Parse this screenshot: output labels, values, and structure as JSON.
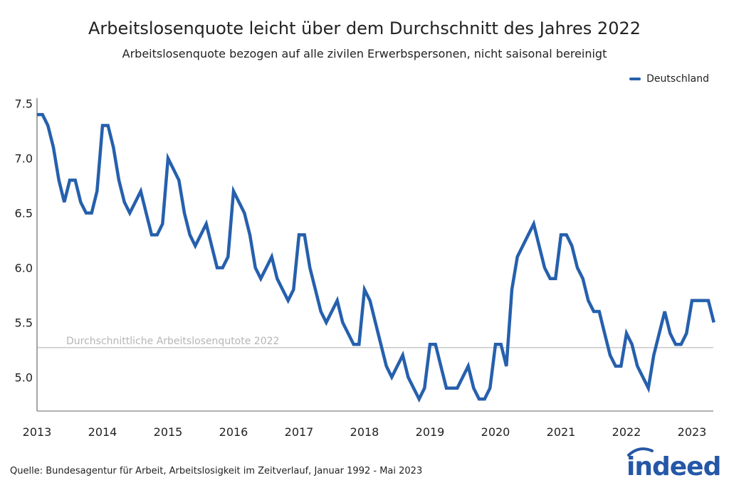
{
  "chart_data": {
    "type": "line",
    "title": "Arbeitslosenquote leicht über dem Durchschnitt des Jahres 2022",
    "subtitle": "Arbeitslosenquote bezogen auf alle zivilen Erwerbspersonen, nicht saisonal bereinigt",
    "xlabel": "",
    "ylabel": "",
    "x_start": "2013-01",
    "x_frequency": "monthly",
    "x_ticks": [
      "2013",
      "2014",
      "2015",
      "2016",
      "2017",
      "2018",
      "2019",
      "2020",
      "2021",
      "2022",
      "2023"
    ],
    "y_ticks": [
      "5.0",
      "5.5",
      "6.0",
      "6.5",
      "7.0",
      "7.5"
    ],
    "ylim": [
      4.69,
      7.55
    ],
    "xlim": [
      "2013-01",
      "2023-05"
    ],
    "grid": false,
    "legend_position": "top-right",
    "series": [
      {
        "name": "Deutschland",
        "color": "#2660ad",
        "values": [
          7.4,
          7.4,
          7.3,
          7.1,
          6.8,
          6.6,
          6.8,
          6.8,
          6.6,
          6.5,
          6.5,
          6.7,
          7.3,
          7.3,
          7.1,
          6.8,
          6.6,
          6.5,
          6.6,
          6.7,
          6.5,
          6.3,
          6.3,
          6.4,
          7.0,
          6.9,
          6.8,
          6.5,
          6.3,
          6.2,
          6.3,
          6.4,
          6.2,
          6.0,
          6.0,
          6.1,
          6.7,
          6.6,
          6.5,
          6.3,
          6.0,
          5.9,
          6.0,
          6.1,
          5.9,
          5.8,
          5.7,
          5.8,
          6.3,
          6.3,
          6.0,
          5.8,
          5.6,
          5.5,
          5.6,
          5.7,
          5.5,
          5.4,
          5.3,
          5.3,
          5.8,
          5.7,
          5.5,
          5.3,
          5.1,
          5.0,
          5.1,
          5.2,
          5.0,
          4.9,
          4.8,
          4.9,
          5.3,
          5.3,
          5.1,
          4.9,
          4.9,
          4.9,
          5.0,
          5.1,
          4.9,
          4.8,
          4.8,
          4.9,
          5.3,
          5.3,
          5.1,
          5.8,
          6.1,
          6.2,
          6.3,
          6.4,
          6.2,
          6.0,
          5.9,
          5.9,
          6.3,
          6.3,
          6.2,
          6.0,
          5.9,
          5.7,
          5.6,
          5.6,
          5.4,
          5.2,
          5.1,
          5.1,
          5.4,
          5.3,
          5.1,
          5.0,
          4.9,
          5.2,
          5.4,
          5.6,
          5.4,
          5.3,
          5.3,
          5.4,
          5.7,
          5.7,
          5.7,
          5.7,
          5.5
        ]
      }
    ],
    "reference_line": {
      "label": "Durchschnittliche Arbeitslosenqutote 2022",
      "value": 5.27,
      "color": "#c8c8c8"
    }
  },
  "source": "Quelle: Bundesagentur für Arbeit, Arbeitslosigkeit im Zeitverlauf, Januar 1992 - Mai 2023",
  "logo": {
    "text": "indeed",
    "color": "#2557a7"
  }
}
